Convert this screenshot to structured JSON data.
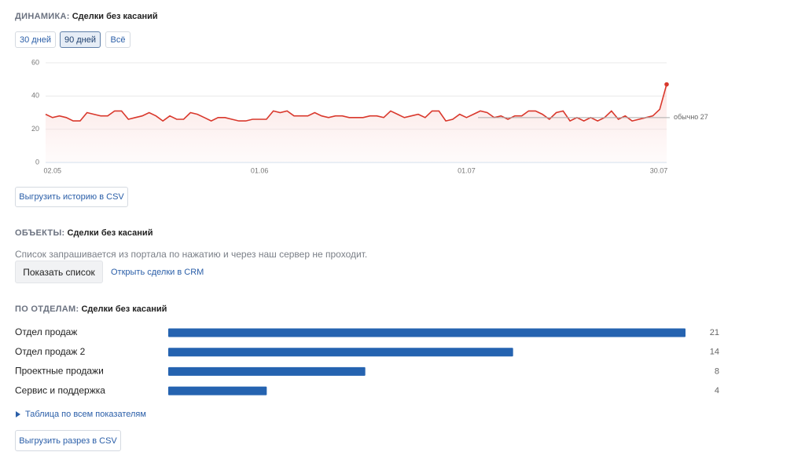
{
  "dynamics": {
    "label": "ДИНАМИКА:",
    "title": "Сделки без касаний",
    "periods": [
      "30 дней",
      "90 дней",
      "Всё"
    ],
    "active_period": 1,
    "export": "Выгрузить историю в CSV"
  },
  "objects": {
    "label": "ОБЪЕКТЫ:",
    "title": "Сделки без касаний",
    "note": "Список запрашивается из портала по нажатию и через наш сервер не проходит.",
    "show_button": "Показать список",
    "crm_link": "Открыть сделки в CRM"
  },
  "departments": {
    "label": "ПО ОТДЕЛАМ:",
    "title": "Сделки без касаний",
    "table_link": "Таблица по всем показателям",
    "export": "Выгрузить разрез в CSV"
  },
  "chart_data": [
    {
      "type": "line",
      "categories": [
        null,
        "02.05",
        null,
        null,
        null,
        null,
        null,
        null,
        null,
        null,
        null,
        null,
        null,
        null,
        null,
        null,
        null,
        null,
        null,
        null,
        null,
        null,
        null,
        null,
        null,
        null,
        null,
        null,
        null,
        null,
        null,
        "01.06",
        null,
        null,
        null,
        null,
        null,
        null,
        null,
        null,
        null,
        null,
        null,
        null,
        null,
        null,
        null,
        null,
        null,
        null,
        null,
        null,
        null,
        null,
        null,
        null,
        null,
        null,
        null,
        null,
        null,
        "01.07",
        null,
        null,
        null,
        null,
        null,
        null,
        null,
        null,
        null,
        null,
        null,
        null,
        null,
        null,
        null,
        null,
        null,
        null,
        null,
        null,
        null,
        null,
        null,
        null,
        null,
        null,
        null,
        null,
        "30.07"
      ],
      "series": [
        {
          "color": "#d9382c",
          "values": [
            29,
            27,
            28,
            27,
            25,
            25,
            30,
            29,
            28,
            28,
            31,
            31,
            26,
            27,
            28,
            30,
            28,
            25,
            28,
            26,
            26,
            30,
            29,
            27,
            25,
            27,
            27,
            26,
            25,
            25,
            26,
            26,
            26,
            31,
            30,
            31,
            28,
            28,
            28,
            30,
            28,
            27,
            28,
            28,
            27,
            27,
            27,
            28,
            28,
            27,
            31,
            29,
            27,
            28,
            29,
            27,
            31,
            31,
            25,
            26,
            29,
            27,
            29,
            31,
            30,
            27,
            28,
            26,
            28,
            28,
            31,
            31,
            29,
            26,
            30,
            31,
            25,
            27,
            25,
            27,
            25,
            27,
            31,
            26,
            28,
            25,
            26,
            27,
            28,
            32,
            47
          ]
        }
      ],
      "ylim": [
        0,
        60
      ],
      "yticks": [
        0,
        20,
        40,
        60
      ],
      "grid": true,
      "highlight_last": true,
      "baseline": {
        "value": 27,
        "label": "обычно 27"
      }
    },
    {
      "type": "bar",
      "orientation": "horizontal",
      "categories": [
        "Отдел продаж",
        "Отдел продаж 2",
        "Проектные продажи",
        "Сервис и поддержка"
      ],
      "values": [
        21,
        14,
        8,
        4
      ],
      "color": "#2563b0",
      "xlim": [
        0,
        21
      ]
    }
  ]
}
